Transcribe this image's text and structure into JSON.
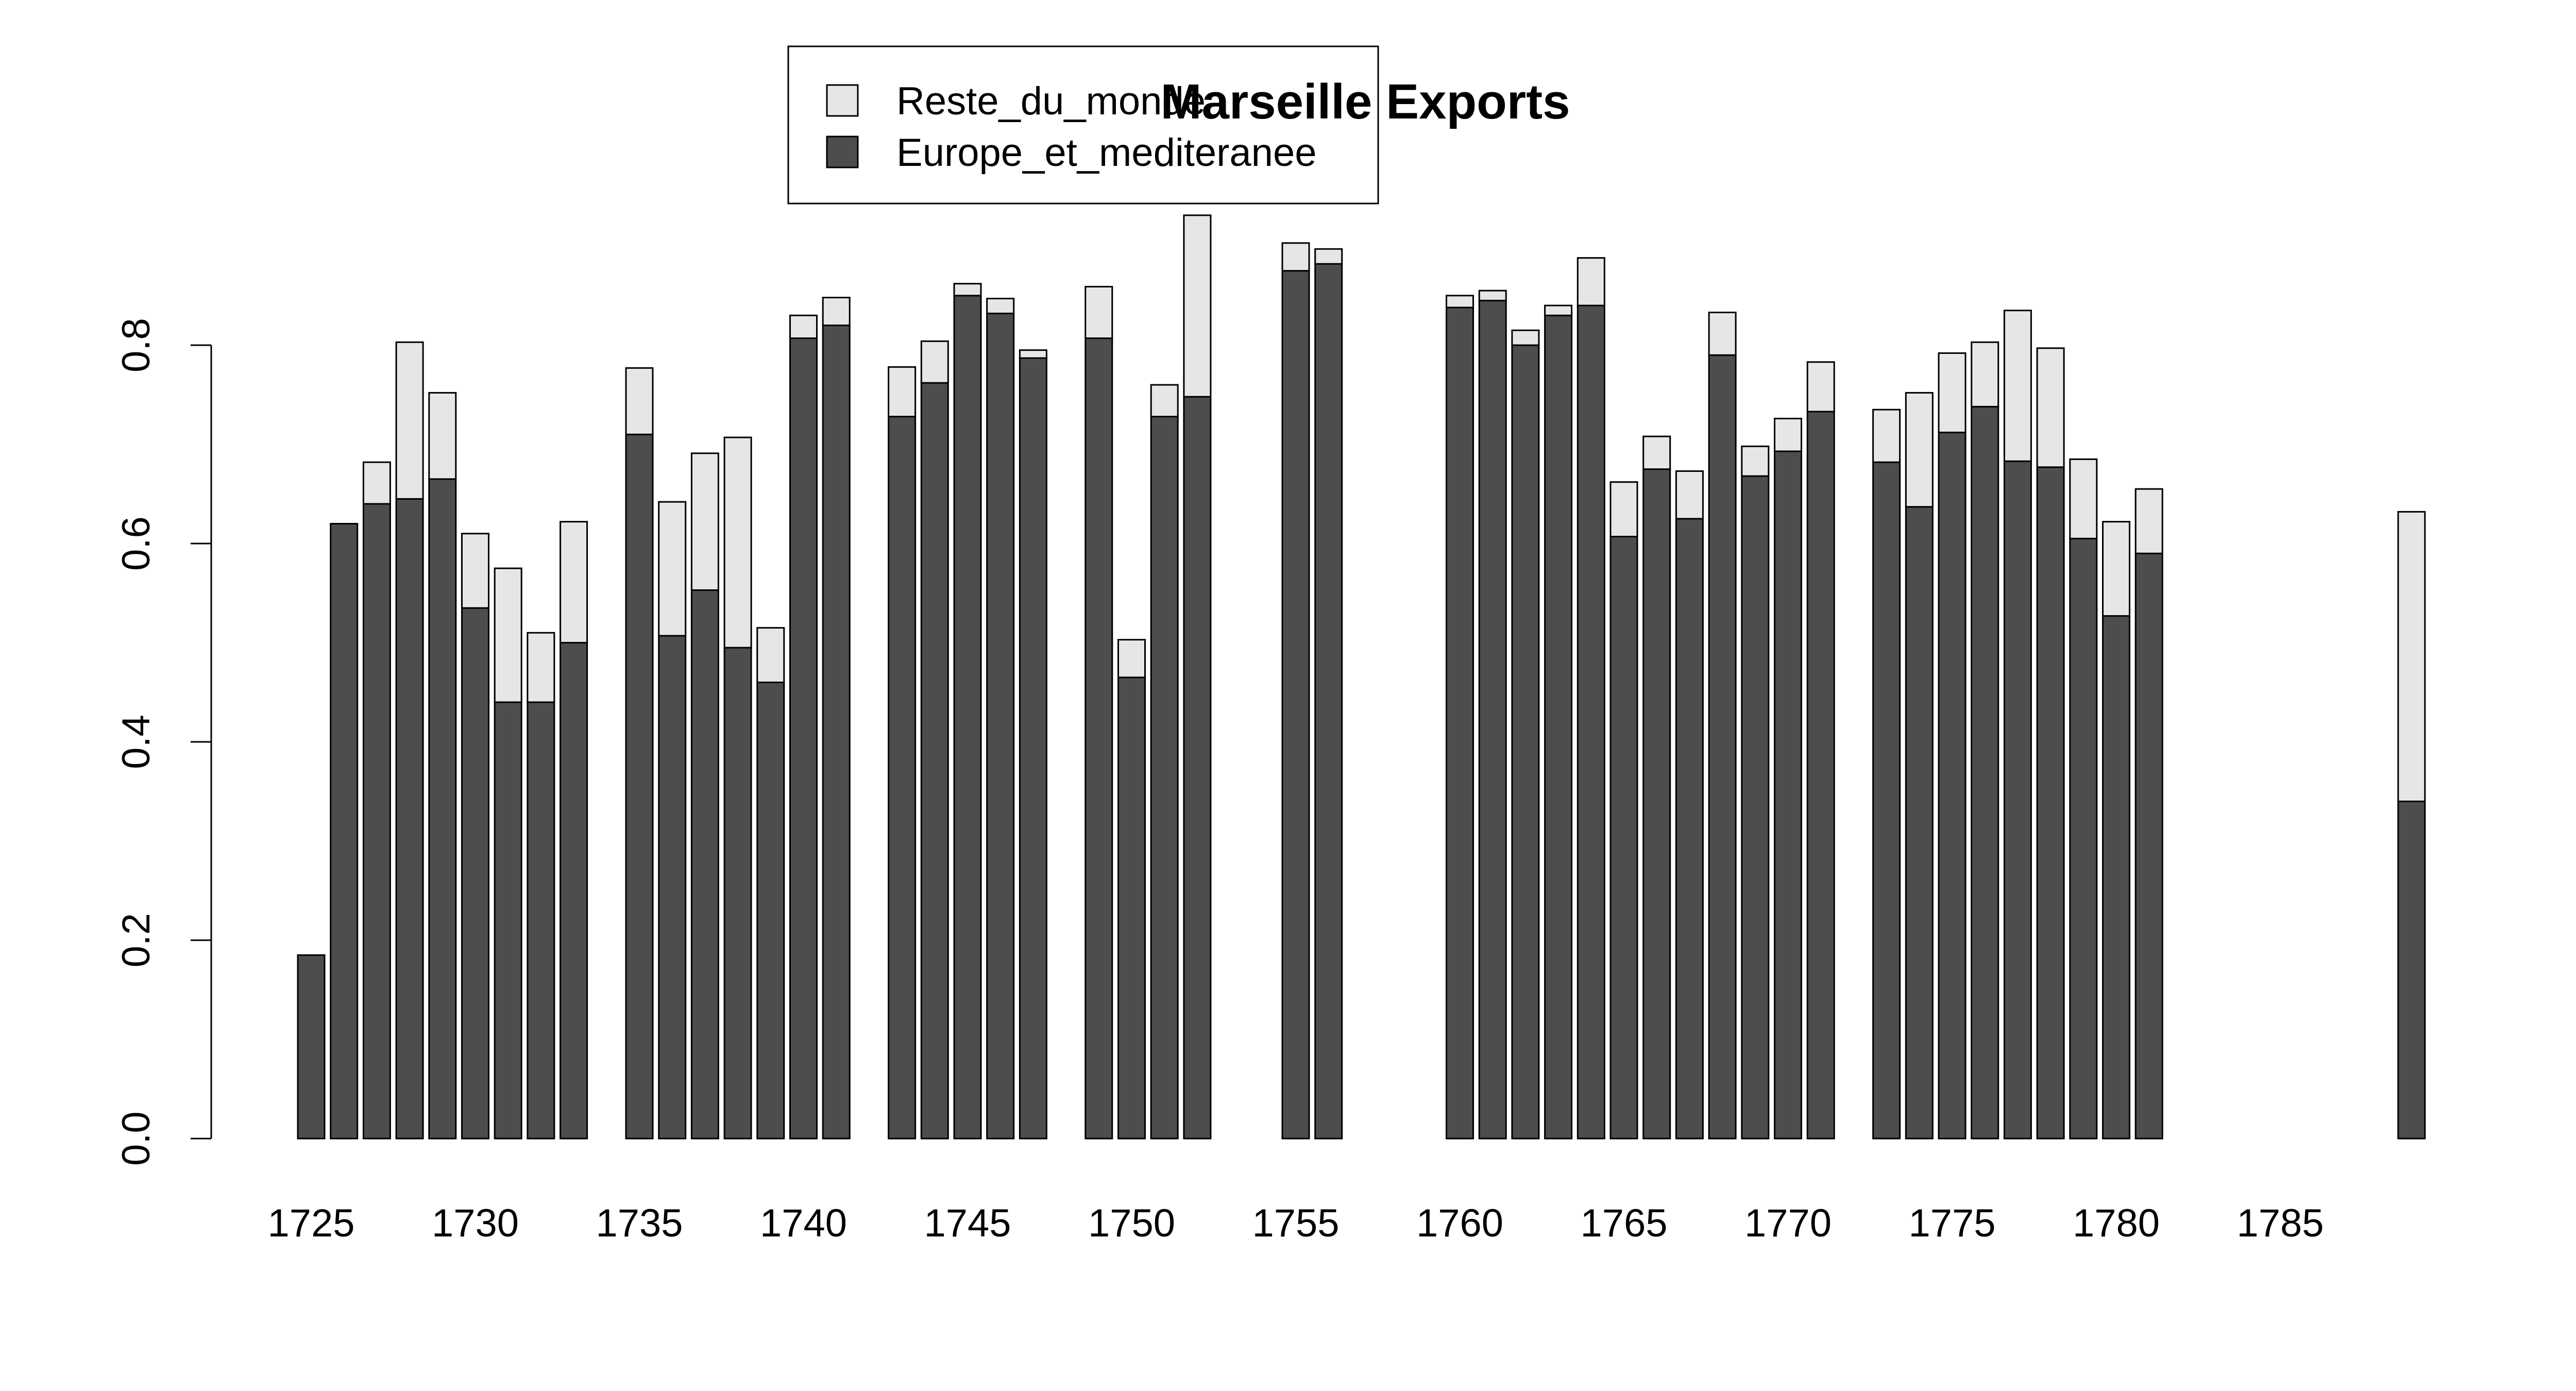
{
  "chart_data": {
    "type": "bar",
    "stacked": true,
    "title": "Marseille Exports",
    "xlabel": "",
    "ylabel": "",
    "ylim": [
      0,
      0.95
    ],
    "y_ticks": [
      "0.0",
      "0.2",
      "0.4",
      "0.6",
      "0.8"
    ],
    "x_ticks": [
      "1725",
      "1730",
      "1735",
      "1740",
      "1745",
      "1750",
      "1755",
      "1760",
      "1765",
      "1770",
      "1775",
      "1780",
      "1785"
    ],
    "legend_placement": "top-center",
    "grid": false,
    "categories": [
      1725,
      1726,
      1727,
      1728,
      1729,
      1730,
      1731,
      1732,
      1733,
      1735,
      1736,
      1737,
      1738,
      1739,
      1740,
      1741,
      1743,
      1744,
      1745,
      1746,
      1747,
      1749,
      1750,
      1751,
      1752,
      1755,
      1756,
      1760,
      1761,
      1762,
      1763,
      1764,
      1765,
      1766,
      1767,
      1768,
      1769,
      1770,
      1771,
      1773,
      1774,
      1775,
      1776,
      1777,
      1778,
      1779,
      1780,
      1781,
      1789
    ],
    "series": [
      {
        "name": "Europe_et_mediteranee",
        "color": "#4d4d4d",
        "values": [
          0.185,
          0.62,
          0.64,
          0.645,
          0.665,
          0.535,
          0.44,
          0.44,
          0.5,
          0.71,
          0.507,
          0.553,
          0.495,
          0.46,
          0.807,
          0.82,
          0.728,
          0.762,
          0.85,
          0.832,
          0.787,
          0.807,
          0.465,
          0.728,
          0.748,
          0.875,
          0.882,
          0.838,
          0.845,
          0.8,
          0.83,
          0.84,
          0.607,
          0.675,
          0.625,
          0.79,
          0.668,
          0.693,
          0.733,
          0.682,
          0.637,
          0.712,
          0.738,
          0.683,
          0.677,
          0.605,
          0.527,
          0.59,
          0.34
        ]
      },
      {
        "name": "Reste_du_monde",
        "color": "#e6e6e6",
        "values": [
          0.0,
          0.0,
          0.042,
          0.158,
          0.087,
          0.075,
          0.135,
          0.07,
          0.122,
          0.067,
          0.135,
          0.138,
          0.212,
          0.055,
          0.023,
          0.028,
          0.05,
          0.042,
          0.012,
          0.015,
          0.008,
          0.052,
          0.038,
          0.032,
          0.183,
          0.028,
          0.015,
          0.012,
          0.01,
          0.015,
          0.01,
          0.048,
          0.055,
          0.033,
          0.048,
          0.043,
          0.03,
          0.033,
          0.05,
          0.053,
          0.115,
          0.08,
          0.065,
          0.152,
          0.12,
          0.08,
          0.095,
          0.065,
          0.292
        ]
      }
    ]
  }
}
